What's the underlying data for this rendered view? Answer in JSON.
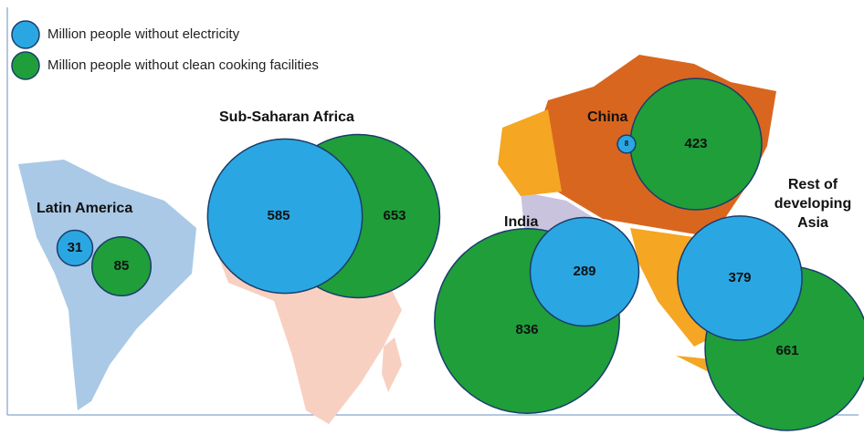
{
  "chart_data": {
    "type": "bubble",
    "categories": [
      "Latin America",
      "Sub-Saharan Africa",
      "China",
      "India",
      "Rest of developing Asia"
    ],
    "series": [
      {
        "name": "Million people without electricity",
        "color": "#2aa7e2",
        "values": [
          31,
          585,
          8,
          289,
          379
        ]
      },
      {
        "name": "Million people without clean cooking facilities",
        "color": "#1f9e3a",
        "values": [
          85,
          653,
          423,
          836,
          661
        ]
      }
    ]
  }
}
